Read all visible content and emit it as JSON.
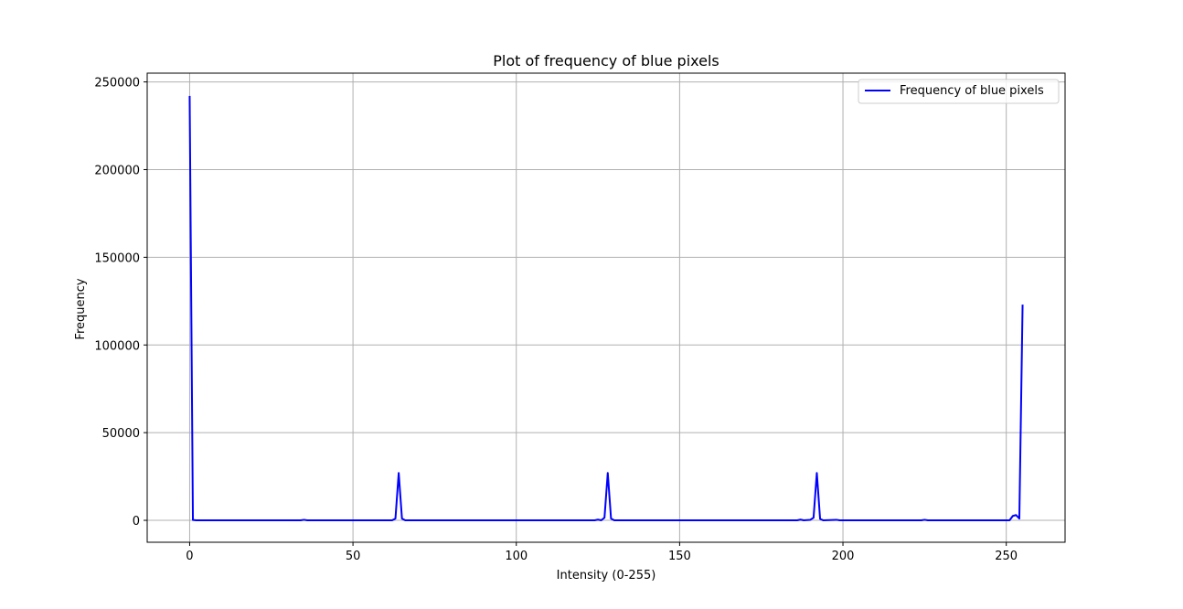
{
  "chart_data": {
    "type": "line",
    "title": "Plot of frequency of blue pixels",
    "xlabel": "Intensity (0-255)",
    "ylabel": "Frequency",
    "xlim": [
      -13,
      268
    ],
    "ylim": [
      -12500,
      255000
    ],
    "xticks": [
      0,
      50,
      100,
      150,
      200,
      250
    ],
    "yticks": [
      0,
      50000,
      100000,
      150000,
      200000,
      250000
    ],
    "grid": true,
    "legend_position": "top-right",
    "series": [
      {
        "name": "Frequency of blue pixels",
        "color": "#0000ff",
        "points": [
          [
            0,
            242000
          ],
          [
            1,
            200
          ],
          [
            2,
            0
          ],
          [
            34,
            0
          ],
          [
            35,
            300
          ],
          [
            36,
            0
          ],
          [
            62,
            0
          ],
          [
            63,
            1000
          ],
          [
            64,
            27000
          ],
          [
            65,
            1000
          ],
          [
            66,
            0
          ],
          [
            124,
            0
          ],
          [
            125,
            400
          ],
          [
            126,
            0
          ],
          [
            127,
            1500
          ],
          [
            128,
            27000
          ],
          [
            129,
            1000
          ],
          [
            130,
            0
          ],
          [
            186,
            0
          ],
          [
            187,
            400
          ],
          [
            188,
            0
          ],
          [
            190,
            300
          ],
          [
            191,
            1500
          ],
          [
            192,
            27000
          ],
          [
            193,
            800
          ],
          [
            194,
            0
          ],
          [
            198,
            300
          ],
          [
            199,
            0
          ],
          [
            224,
            0
          ],
          [
            225,
            300
          ],
          [
            226,
            0
          ],
          [
            251,
            0
          ],
          [
            252,
            2500
          ],
          [
            253,
            3000
          ],
          [
            254,
            1000
          ],
          [
            255,
            123000
          ]
        ]
      }
    ]
  }
}
